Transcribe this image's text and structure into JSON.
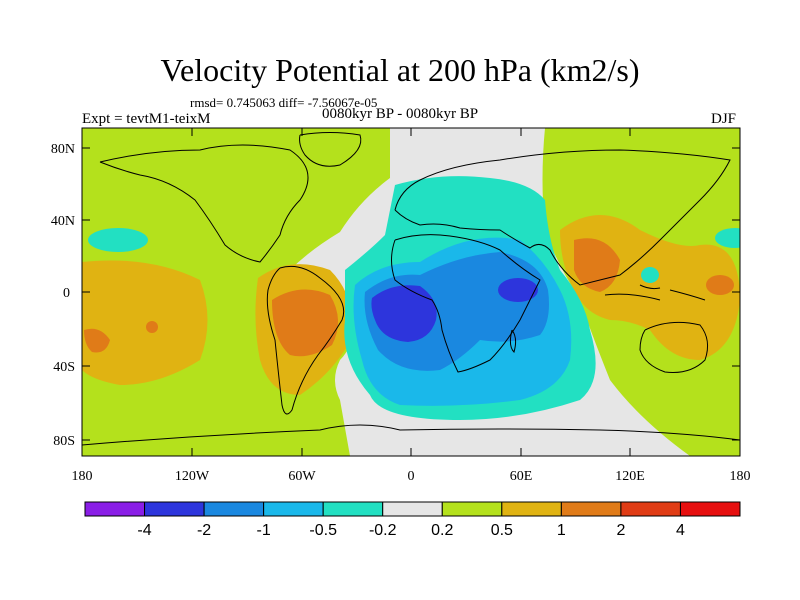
{
  "title": "Velocity Potential at 200 hPa (km2/s)",
  "stats": "rmsd= 0.745063 diff= -7.56067e-05",
  "experiment": "Expt = tevtM1-teixM",
  "period": "0080kyr BP - 0080kyr BP",
  "season": "DJF",
  "lat_ticks": [
    "80N",
    "40N",
    "0",
    "40S",
    "80S"
  ],
  "lon_ticks": [
    "180",
    "120W",
    "60W",
    "0",
    "60E",
    "120E",
    "180"
  ],
  "colorbar": {
    "levels": [
      "-4",
      "-2",
      "-1",
      "-0.5",
      "-0.2",
      "0.2",
      "0.5",
      "1",
      "2",
      "4"
    ],
    "colors": [
      "#8a1ee6",
      "#2d35dc",
      "#1a88e0",
      "#1ab8ea",
      "#22e0c2",
      "#e6e6e6",
      "#b4e11c",
      "#e0b312",
      "#e07b18",
      "#e03c15",
      "#e60f0f"
    ]
  },
  "field_colors": {
    "background": "#e6e6e6",
    "neg_02": "#22e0c2",
    "neg_05": "#1ab8ea",
    "neg_1": "#1a88e0",
    "neg_2": "#2d35dc",
    "pos_02": "#b4e11c",
    "pos_05": "#e0b312",
    "pos_1": "#e07b18"
  }
}
